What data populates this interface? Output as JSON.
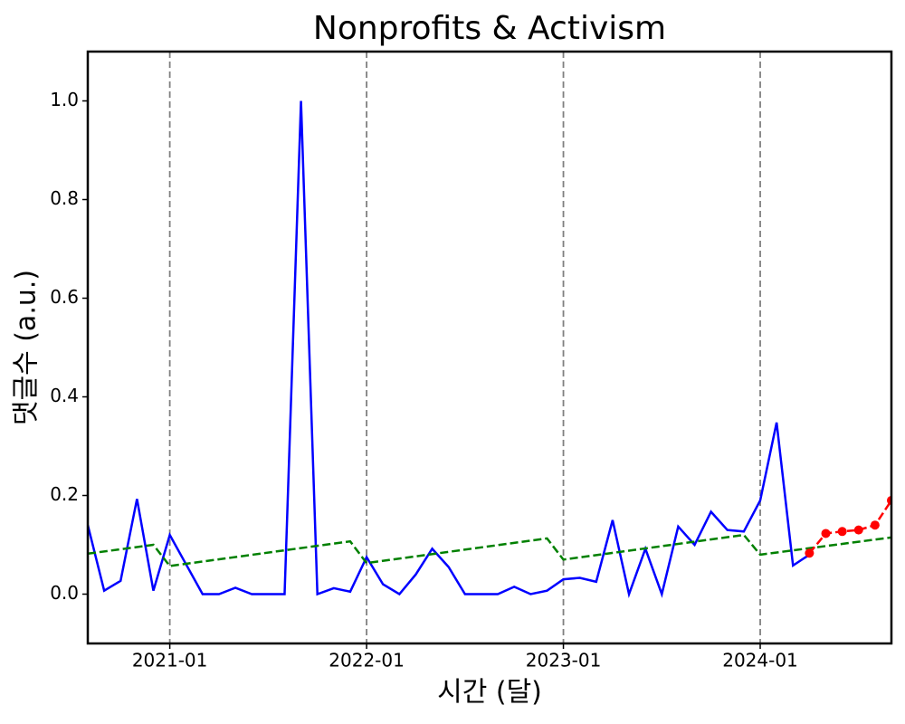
{
  "chart_data": {
    "type": "line",
    "title": "Nonprofits & Activism",
    "xlabel": "시간 (달)",
    "ylabel": "댓글수 (a.u.)",
    "xlim": [
      "2020-08",
      "2024-09"
    ],
    "xticks": [
      "2021-01",
      "2022-01",
      "2023-01",
      "2024-01"
    ],
    "xgrid": true,
    "ylim": [
      -0.1,
      1.1
    ],
    "yticks": [
      {
        "value": 0,
        "label": "0.0"
      },
      0.2,
      0.4,
      0.6,
      0.8,
      {
        "value": 1,
        "label": "1.0"
      }
    ],
    "series": [
      {
        "color": "#0000ff",
        "style": "solid",
        "markers": false,
        "x": [
          "2020-08",
          "2020-09",
          "2020-10",
          "2020-11",
          "2020-12",
          "2021-01",
          "2021-02",
          "2021-03",
          "2021-04",
          "2021-05",
          "2021-06",
          "2021-07",
          "2021-08",
          "2021-09",
          "2021-10",
          "2021-11",
          "2021-12",
          "2022-01",
          "2022-02",
          "2022-03",
          "2022-04",
          "2022-05",
          "2022-06",
          "2022-07",
          "2022-08",
          "2022-09",
          "2022-10",
          "2022-11",
          "2022-12",
          "2023-01",
          "2023-02",
          "2023-03",
          "2023-04",
          "2023-05",
          "2023-06",
          "2023-07",
          "2023-08",
          "2023-09",
          "2023-10",
          "2023-11",
          "2023-12",
          "2024-01",
          "2024-02",
          "2024-03",
          "2024-04"
        ],
        "values": [
          0.14,
          0.007,
          0.027,
          0.193,
          0.007,
          0.12,
          0.06,
          0,
          0,
          0.013,
          0,
          0,
          0,
          1.0,
          0,
          0.012,
          0.005,
          0.075,
          0.02,
          0,
          0.04,
          0.092,
          0.055,
          0,
          0,
          0,
          0.015,
          0,
          0.007,
          0.03,
          0.033,
          0.025,
          0.15,
          0,
          0.092,
          0,
          0.137,
          0.1,
          0.167,
          0.13,
          0.127,
          0.19,
          0.348,
          0.058,
          0.08
        ]
      },
      {
        "color": "#008000",
        "style": "dashed",
        "markers": false,
        "x": [
          "2020-08",
          "2020-12",
          "2021-01",
          "2021-12",
          "2022-01",
          "2022-12",
          "2023-01",
          "2023-12",
          "2024-01",
          "2024-09"
        ],
        "values": [
          0.082,
          0.1,
          0.057,
          0.107,
          0.063,
          0.113,
          0.07,
          0.12,
          0.08,
          0.115
        ]
      },
      {
        "color": "#ff0000",
        "style": "dashed",
        "markers": true,
        "x": [
          "2024-04",
          "2024-05",
          "2024-06",
          "2024-07",
          "2024-08",
          "2024-09"
        ],
        "values": [
          0.083,
          0.123,
          0.127,
          0.13,
          0.14,
          0.19
        ]
      }
    ]
  }
}
